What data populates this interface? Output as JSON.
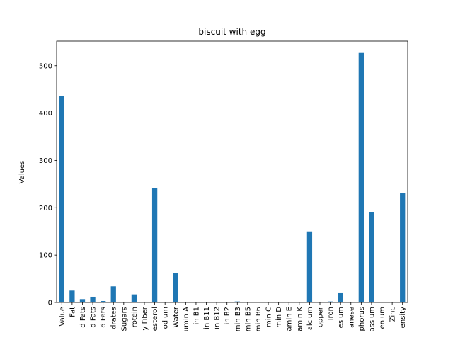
{
  "chart_data": {
    "type": "bar",
    "title": "biscuit with egg",
    "xlabel": "",
    "ylabel": "Values",
    "ylim": [
      0,
      552
    ],
    "yticks": [
      0,
      100,
      200,
      300,
      400,
      500
    ],
    "grid": false,
    "legend": "none",
    "bar_color": "#1f77b4",
    "categories": [
      "Value",
      "Fat",
      "d Fats",
      "d Fats",
      "d Fats",
      "drates",
      "Sugars",
      "rotein",
      "y Fiber",
      "esterol",
      "odium",
      "Water",
      "umin A",
      "in B1",
      "in B11",
      "in B12",
      "in B2",
      "min B3",
      "min B5",
      "min B6",
      "min C",
      "min D",
      "amin E",
      "amin K",
      "alcium",
      "opper",
      "Iron",
      "esium",
      "anese",
      "phorus",
      "assium",
      "enium",
      "Zinc",
      "ensity"
    ],
    "values": [
      436,
      25,
      7,
      12,
      3,
      34,
      1,
      17,
      1,
      241,
      1,
      62,
      0,
      0,
      0,
      0,
      0,
      2,
      0,
      0,
      0,
      0,
      1,
      0,
      150,
      0,
      2,
      21,
      0,
      527,
      190,
      0,
      1,
      231
    ]
  }
}
